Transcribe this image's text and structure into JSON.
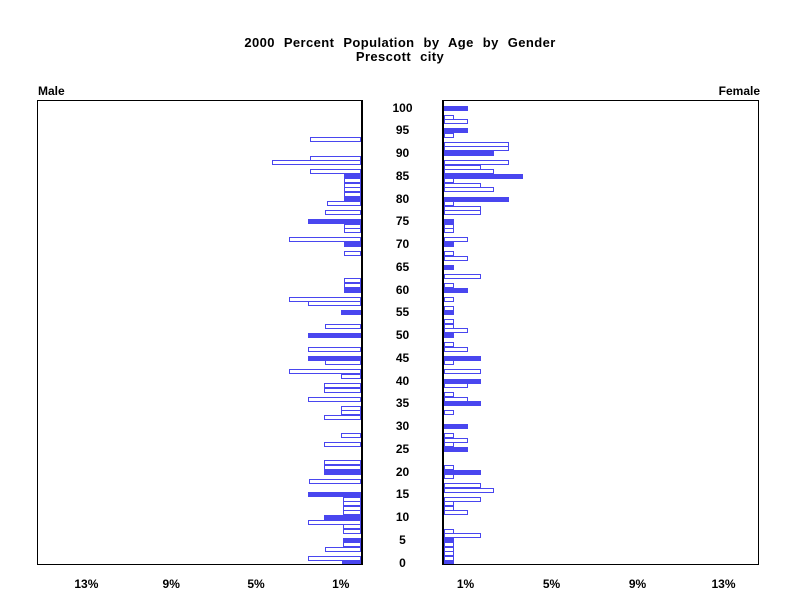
{
  "chart_data": {
    "type": "bar",
    "variant": "population-pyramid",
    "title": "2000 Percent Population by Age by Gender",
    "subtitle": "Prescott city",
    "left_header": "Male",
    "right_header": "Female",
    "bar_color": "#4946ef",
    "outline_fill": "#ffffff",
    "solid_rule": "bars at ages that are multiples of 5 are solid filled; other single-year bars are white with blue outline",
    "age_axis": {
      "min": 0,
      "max": 100,
      "label_step": 5,
      "labels": [
        "0",
        "5",
        "10",
        "15",
        "20",
        "25",
        "30",
        "35",
        "40",
        "45",
        "50",
        "55",
        "60",
        "65",
        "70",
        "75",
        "80",
        "85",
        "90",
        "95",
        "100"
      ]
    },
    "pct_axis": {
      "max_pct": 15,
      "male_ticks": [
        {
          "label": "13%",
          "value": 13
        },
        {
          "label": "9%",
          "value": 9
        },
        {
          "label": "5%",
          "value": 5
        },
        {
          "label": "1%",
          "value": 1
        }
      ],
      "female_ticks": [
        {
          "label": "1%",
          "value": 1
        },
        {
          "label": "5%",
          "value": 5
        },
        {
          "label": "9%",
          "value": 9
        },
        {
          "label": "13%",
          "value": 13
        }
      ]
    },
    "series": [
      {
        "name": "Male",
        "ages": "index = age 0..100, value = percent of population",
        "values": [
          0.9,
          2.5,
          0,
          1.7,
          0.86,
          0.86,
          0,
          0.86,
          0.86,
          2.5,
          1.73,
          0.86,
          0.86,
          0.86,
          0.86,
          2.51,
          0,
          0,
          2.47,
          0,
          1.73,
          1.73,
          1.73,
          0,
          0,
          0,
          1.73,
          0,
          0.94,
          0,
          0,
          0,
          1.75,
          0.94,
          0.94,
          0,
          2.5,
          0,
          1.75,
          1.75,
          0,
          0.93,
          3.38,
          0,
          1.7,
          2.5,
          0,
          2.5,
          0,
          0,
          2.5,
          0,
          1.7,
          0,
          0,
          0.94,
          0,
          2.5,
          3.38,
          0,
          0.8,
          0.8,
          0.8,
          0,
          0,
          0,
          0,
          0,
          0.8,
          0,
          0.8,
          3.38,
          0,
          0.8,
          0.8,
          2.5,
          0,
          1.7,
          0,
          1.6,
          0.8,
          0.8,
          0.8,
          0.8,
          0.8,
          0.8,
          2.4,
          0,
          4.2,
          2.4,
          0,
          0,
          0,
          2.4,
          0,
          0,
          0,
          0,
          0,
          0,
          0
        ]
      },
      {
        "name": "Female",
        "ages": "index = age 0..100, value = percent of population",
        "values": [
          0.45,
          0.45,
          0.45,
          0.45,
          0.45,
          0.45,
          1.72,
          0.45,
          0,
          0,
          0,
          1.1,
          0.45,
          0.45,
          1.72,
          0,
          2.34,
          1.72,
          0,
          0.45,
          1.72,
          0.45,
          0,
          0,
          0,
          1.1,
          0.45,
          1.1,
          0.45,
          0,
          1.1,
          0,
          0,
          0.45,
          0,
          1.72,
          1.1,
          0.45,
          0,
          1.1,
          1.72,
          0,
          1.72,
          0,
          0.45,
          1.72,
          0,
          1.1,
          0.45,
          0,
          0.45,
          1.1,
          0.45,
          0.45,
          0,
          0.45,
          0.45,
          0,
          0.45,
          0,
          1.1,
          0.45,
          0,
          1.72,
          0,
          0.45,
          0,
          1.1,
          0.45,
          0,
          0.45,
          1.1,
          0,
          0.45,
          0.45,
          0.45,
          0,
          1.72,
          1.72,
          0.45,
          3.0,
          0,
          2.34,
          1.72,
          0.45,
          3.66,
          2.34,
          1.72,
          3.0,
          0,
          2.34,
          3.0,
          3.0,
          0,
          0.45,
          1.1,
          0,
          1.1,
          0.45,
          0,
          1.1
        ]
      }
    ]
  }
}
